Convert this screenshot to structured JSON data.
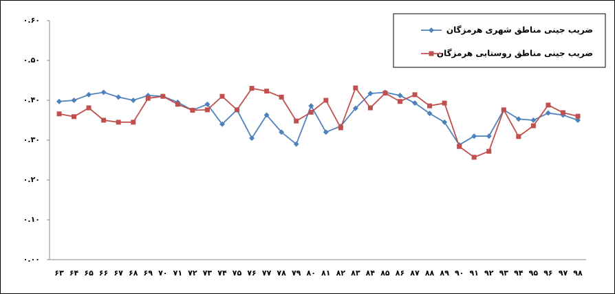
{
  "chart_data": {
    "type": "line",
    "categories": [
      "۶۳",
      "۶۴",
      "۶۵",
      "۶۶",
      "۶۷",
      "۶۸",
      "۶۹",
      "۷۰",
      "۷۱",
      "۷۲",
      "۷۳",
      "۷۴",
      "۷۵",
      "۷۶",
      "۷۷",
      "۷۸",
      "۷۹",
      "۸۰",
      "۸۱",
      "۸۲",
      "۸۳",
      "۸۴",
      "۸۵",
      "۸۶",
      "۸۷",
      "۸۸",
      "۸۹",
      "۹۰",
      "۹۱",
      "۹۲",
      "۹۳",
      "۹۴",
      "۹۵",
      "۹۶",
      "۹۷",
      "۹۸"
    ],
    "series": [
      {
        "name": "ضریب جینی مناطق شهری هرمزگان",
        "color": "#4f81bd",
        "marker": "diamond",
        "values": [
          0.397,
          0.4,
          0.414,
          0.42,
          0.408,
          0.4,
          0.412,
          0.41,
          0.395,
          0.375,
          0.39,
          0.34,
          0.376,
          0.305,
          0.363,
          0.32,
          0.29,
          0.386,
          0.32,
          0.335,
          0.38,
          0.417,
          0.42,
          0.412,
          0.393,
          0.367,
          0.345,
          0.288,
          0.31,
          0.31,
          0.376,
          0.353,
          0.35,
          0.368,
          0.363,
          0.35
        ]
      },
      {
        "name": "ضریب جینی مناطق روستایی هرمزگان",
        "color": "#c0504d",
        "marker": "square",
        "values": [
          0.366,
          0.359,
          0.381,
          0.35,
          0.345,
          0.345,
          0.405,
          0.41,
          0.39,
          0.375,
          0.376,
          0.41,
          0.376,
          0.43,
          0.423,
          0.408,
          0.348,
          0.37,
          0.4,
          0.331,
          0.431,
          0.381,
          0.418,
          0.397,
          0.414,
          0.386,
          0.393,
          0.284,
          0.257,
          0.272,
          0.376,
          0.309,
          0.336,
          0.388,
          0.369,
          0.36
        ]
      }
    ],
    "ylim": [
      0,
      0.6
    ],
    "yticks": [
      {
        "value": 0,
        "label": "۰.۰۰"
      },
      {
        "value": 0.1,
        "label": "۰.۱۰"
      },
      {
        "value": 0.2,
        "label": "۰.۲۰"
      },
      {
        "value": 0.3,
        "label": "۰.۳۰"
      },
      {
        "value": 0.4,
        "label": "۰.۴۰"
      },
      {
        "value": 0.5,
        "label": "۰.۵۰"
      },
      {
        "value": 0.6,
        "label": "۰.۶۰"
      }
    ],
    "grid": false,
    "legend": "upper-right"
  }
}
